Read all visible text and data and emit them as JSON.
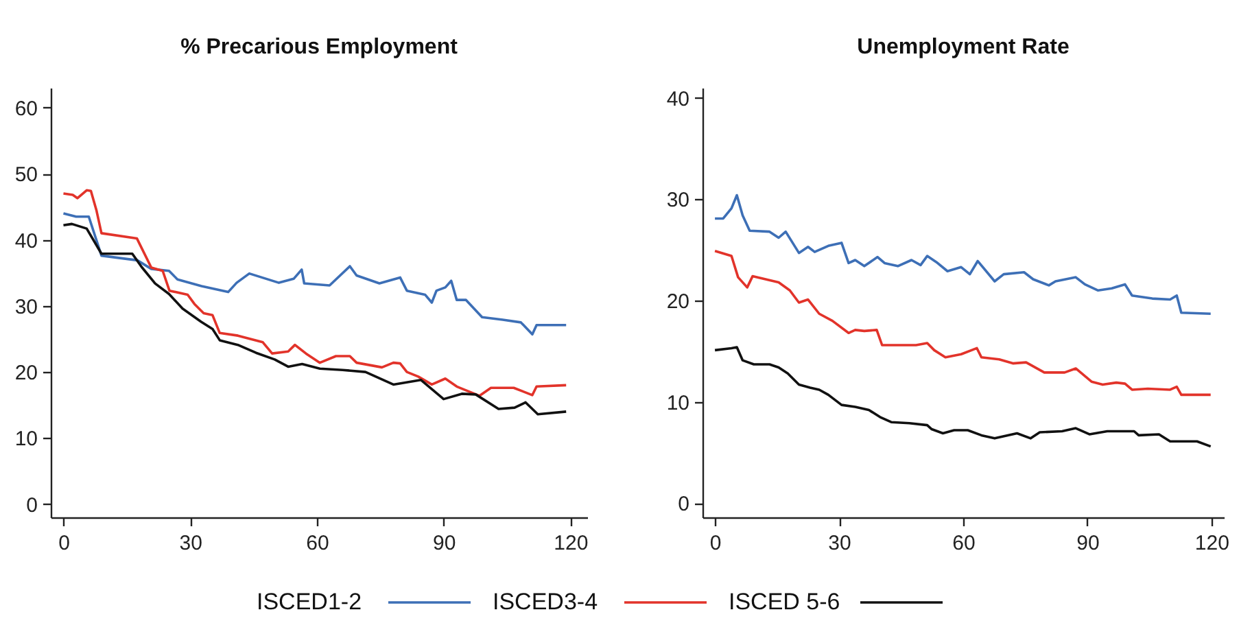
{
  "chart_data": [
    {
      "type": "line",
      "title": "% Precarious Employment",
      "xlim": [
        -3,
        124
      ],
      "xticks": [
        0,
        30,
        60,
        90,
        120
      ],
      "ylim": [
        -2,
        63
      ],
      "yticks": [
        0,
        10,
        20,
        30,
        40,
        50,
        60
      ],
      "legend": "bottom",
      "series": [
        {
          "name": "ISCED1-2",
          "color": "#3d6fb6",
          "x": [
            0,
            3,
            6,
            9,
            17.5,
            20.8,
            25,
            27,
            32.7,
            39,
            41,
            44,
            51,
            54.5,
            56.4,
            57,
            63,
            67.8,
            69.4,
            74.8,
            79.7,
            81.3,
            85.6,
            87.2,
            88.3,
            90.4,
            91.8,
            93.1,
            95.3,
            99.1,
            104,
            108.3,
            111,
            112,
            119
          ],
          "values": [
            44.0,
            43.5,
            43.5,
            37.6,
            36.9,
            35.6,
            35.3,
            34.0,
            33.0,
            32.1,
            33.5,
            34.9,
            33.5,
            34.1,
            35.5,
            33.4,
            33.1,
            36.0,
            34.6,
            33.4,
            34.3,
            32.3,
            31.7,
            30.5,
            32.3,
            32.8,
            33.8,
            30.9,
            30.9,
            28.3,
            27.9,
            27.5,
            25.7,
            27.1,
            27.1
          ]
        },
        {
          "name": "ISCED3-4",
          "color": "#e2332a",
          "x": [
            0,
            2.2,
            3.3,
            5.5,
            6.5,
            7.8,
            9,
            17.4,
            20.8,
            23.5,
            25.1,
            29.4,
            31,
            33.2,
            35.3,
            37,
            41.3,
            47.2,
            49.4,
            53.2,
            54.8,
            57.4,
            60.7,
            64.5,
            67.8,
            69.4,
            75.4,
            78.1,
            79.7,
            81.3,
            84,
            87.2,
            90.4,
            93.1,
            98.5,
            101.2,
            106.6,
            111,
            112,
            119
          ],
          "values": [
            47.0,
            46.8,
            46.3,
            47.5,
            47.4,
            44.5,
            41.0,
            40.2,
            35.8,
            35.3,
            32.3,
            31.7,
            30.3,
            28.9,
            28.6,
            25.9,
            25.5,
            24.5,
            22.8,
            23.1,
            24.1,
            22.8,
            21.4,
            22.4,
            22.4,
            21.4,
            20.7,
            21.4,
            21.3,
            20.0,
            19.3,
            18.1,
            19.0,
            17.8,
            16.4,
            17.6,
            17.6,
            16.5,
            17.8,
            18.0
          ]
        },
        {
          "name": "ISCED 5-6",
          "color": "#111111",
          "x": [
            0,
            2,
            5.5,
            9,
            16.3,
            18.5,
            21.7,
            25,
            28.2,
            32.6,
            35.3,
            37,
            41.3,
            45.6,
            50,
            53.2,
            56.5,
            60.7,
            66.1,
            71.5,
            78.1,
            84.6,
            90,
            94.3,
            97.6,
            103,
            106.8,
            109.4,
            112.3,
            119
          ],
          "values": [
            42.2,
            42.4,
            41.7,
            37.9,
            37.9,
            35.9,
            33.4,
            31.8,
            29.6,
            27.6,
            26.5,
            24.8,
            24.1,
            22.9,
            21.9,
            20.8,
            21.2,
            20.5,
            20.3,
            20.0,
            18.1,
            18.8,
            15.9,
            16.7,
            16.6,
            14.4,
            14.6,
            15.4,
            13.6,
            14.0
          ]
        }
      ]
    },
    {
      "type": "line",
      "title": "Unemployment Rate",
      "xlim": [
        -3,
        123
      ],
      "xticks": [
        0,
        30,
        60,
        90,
        120
      ],
      "ylim": [
        -1.4,
        41
      ],
      "yticks": [
        0,
        10,
        20,
        30,
        40
      ],
      "legend": "bottom",
      "series": [
        {
          "name": "ISCED1-2",
          "color": "#3d6fb6",
          "x": [
            0,
            2,
            4,
            5.3,
            6.7,
            8.4,
            13.2,
            15.4,
            17.1,
            20.3,
            22.5,
            24.1,
            27.4,
            30.6,
            32.3,
            33.9,
            36.1,
            39.3,
            41,
            44.2,
            47.5,
            49.7,
            51.3,
            53.5,
            56.2,
            59.5,
            61.6,
            63.5,
            67.6,
            69.8,
            74.7,
            76.9,
            80.7,
            82.3,
            87.2,
            89.4,
            92.6,
            95.9,
            99.1,
            100.8,
            105.7,
            110,
            111.6,
            112.7,
            119.8
          ],
          "values": [
            28.1,
            28.1,
            29.1,
            30.4,
            28.4,
            26.9,
            26.8,
            26.2,
            26.8,
            24.7,
            25.3,
            24.8,
            25.4,
            25.7,
            23.7,
            24.0,
            23.4,
            24.3,
            23.7,
            23.4,
            24.0,
            23.5,
            24.4,
            23.8,
            22.9,
            23.3,
            22.6,
            23.9,
            21.9,
            22.6,
            22.8,
            22.1,
            21.5,
            21.9,
            22.3,
            21.6,
            21.0,
            21.2,
            21.6,
            20.5,
            20.2,
            20.1,
            20.5,
            18.8,
            18.7
          ]
        },
        {
          "name": "ISCED3-4",
          "color": "#e2332a",
          "x": [
            0,
            4,
            5.6,
            7.8,
            9.1,
            15.4,
            18.1,
            20.3,
            22.5,
            25.2,
            28.4,
            32.3,
            33.9,
            36.1,
            39.1,
            40.4,
            44.8,
            48.6,
            51.3,
            53,
            55.7,
            59.5,
            63.3,
            64.4,
            68.7,
            72,
            75.2,
            79.6,
            84.5,
            87.2,
            91,
            93.7,
            97,
            99.1,
            100.8,
            104.6,
            110,
            111.6,
            112.7,
            119.8
          ],
          "values": [
            24.9,
            24.4,
            22.3,
            21.3,
            22.4,
            21.8,
            21.0,
            19.8,
            20.1,
            18.7,
            18.0,
            16.8,
            17.1,
            17.0,
            17.1,
            15.6,
            15.6,
            15.6,
            15.8,
            15.1,
            14.4,
            14.7,
            15.3,
            14.4,
            14.2,
            13.8,
            13.9,
            12.9,
            12.9,
            13.3,
            12.0,
            11.7,
            11.9,
            11.8,
            11.2,
            11.3,
            11.2,
            11.5,
            10.7,
            10.7
          ]
        },
        {
          "name": "ISCED 5-6",
          "color": "#111111",
          "x": [
            0,
            4,
            5.3,
            6.7,
            9.4,
            13.2,
            15.4,
            17.6,
            20.3,
            23,
            25.2,
            27.4,
            30.6,
            33.9,
            37.2,
            39.9,
            42.6,
            47,
            51.3,
            52.4,
            55.1,
            57.8,
            61.1,
            64.4,
            67.6,
            73,
            76.3,
            78.5,
            83.9,
            87.2,
            90.5,
            94.8,
            98.1,
            101.3,
            102.4,
            107.3,
            110,
            116.5,
            119.8
          ],
          "values": [
            15.1,
            15.3,
            15.4,
            14.1,
            13.7,
            13.7,
            13.4,
            12.8,
            11.7,
            11.4,
            11.2,
            10.7,
            9.7,
            9.5,
            9.2,
            8.5,
            8.0,
            7.9,
            7.7,
            7.3,
            6.9,
            7.2,
            7.2,
            6.7,
            6.4,
            6.9,
            6.4,
            7.0,
            7.1,
            7.4,
            6.8,
            7.1,
            7.1,
            7.1,
            6.7,
            6.8,
            6.1,
            6.1,
            5.6
          ]
        }
      ]
    }
  ]
}
